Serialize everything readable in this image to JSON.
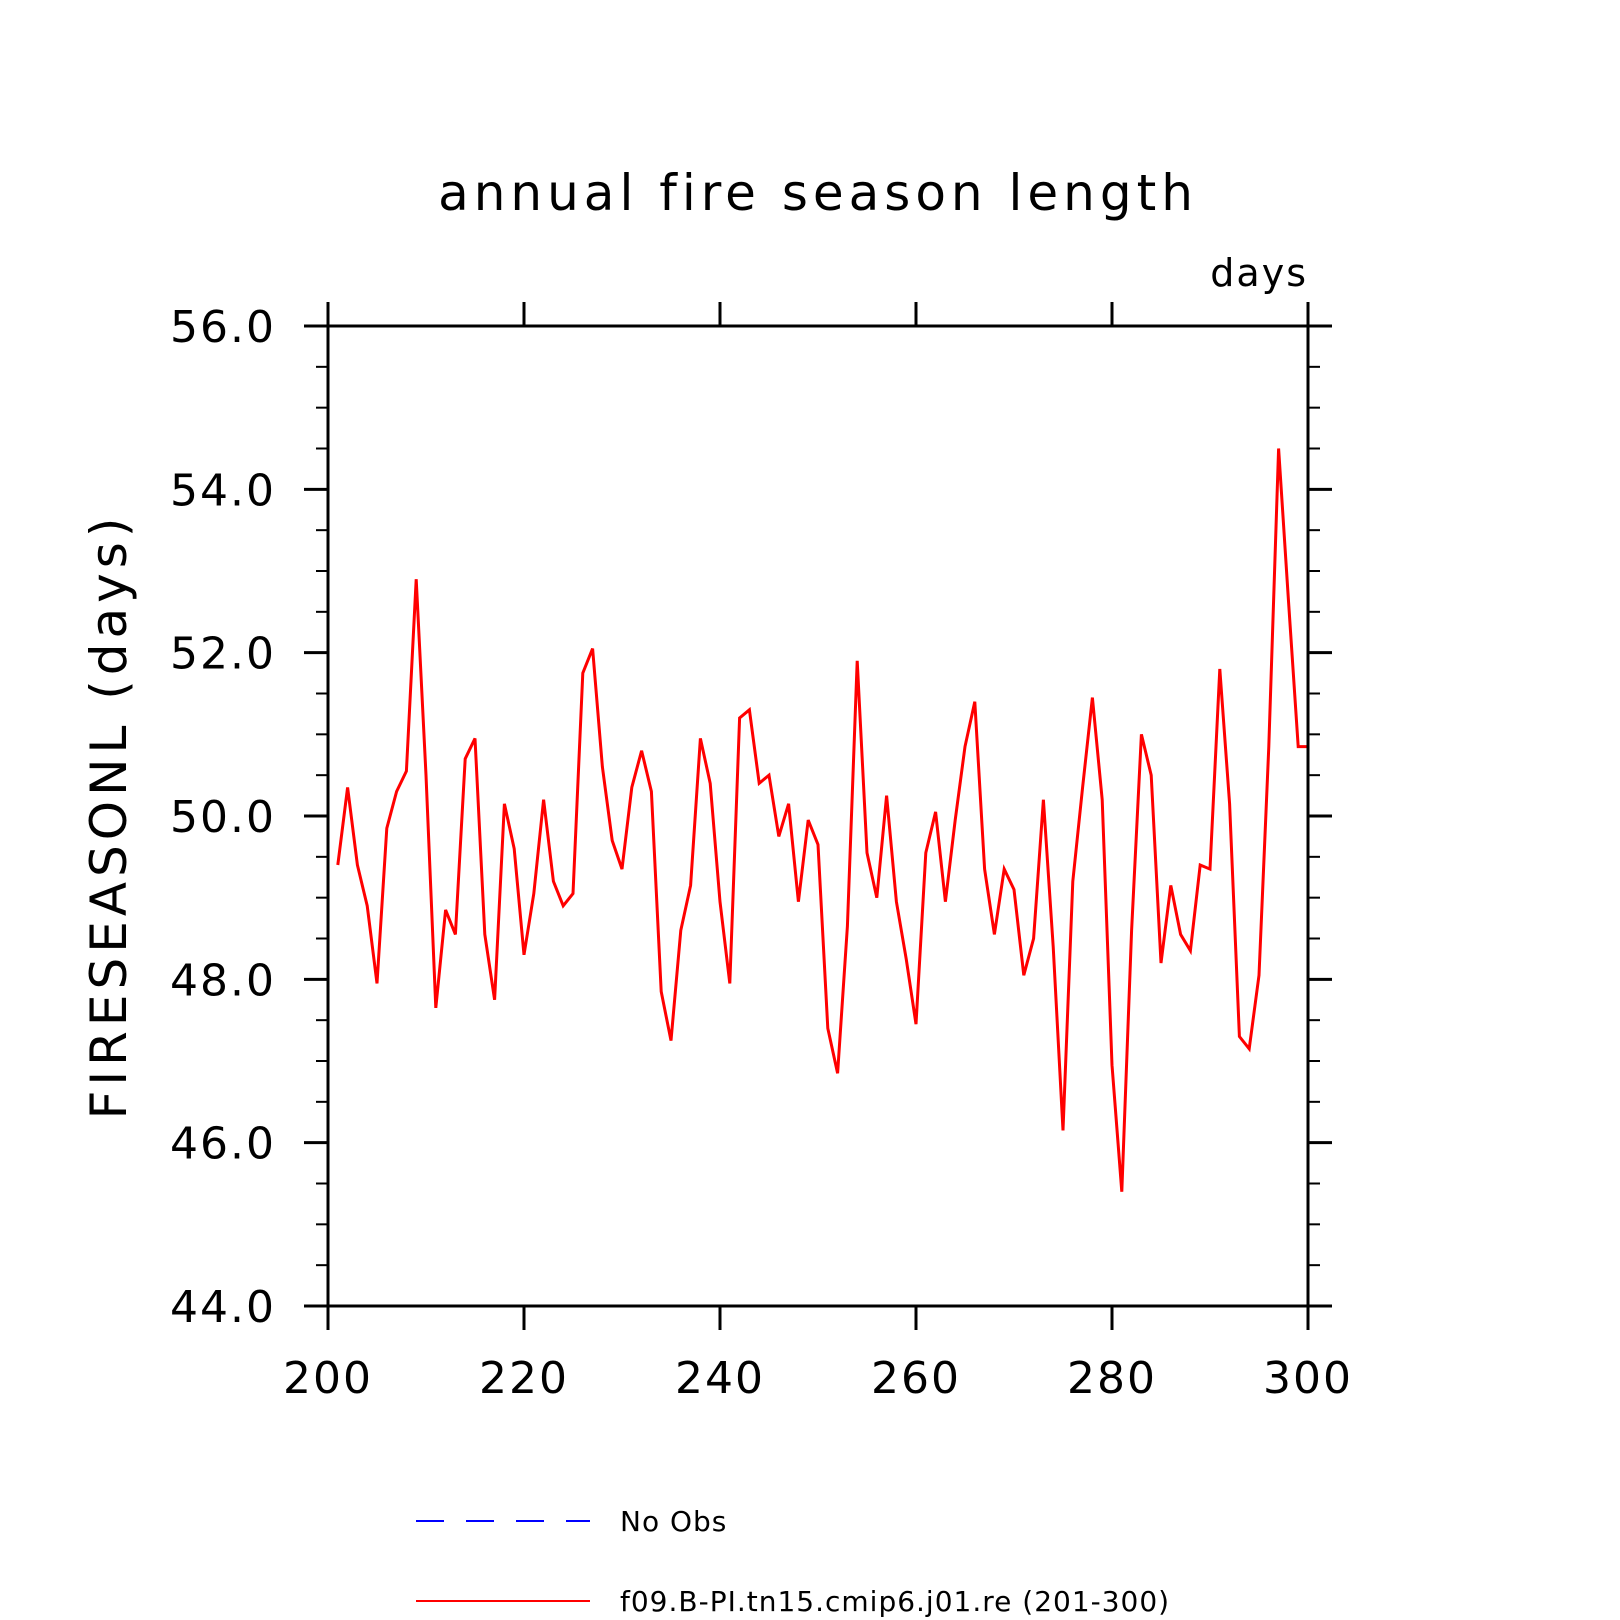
{
  "chart_data": {
    "type": "line",
    "title": "annual fire season length",
    "units": "days",
    "xlabel": "",
    "ylabel": "FIRESEASONL   (days)",
    "xlim": [
      200,
      300
    ],
    "ylim": [
      44,
      56
    ],
    "x_ticks": [
      "200",
      "220",
      "240",
      "260",
      "280",
      "300"
    ],
    "y_ticks": [
      "44.0",
      "46.0",
      "48.0",
      "50.0",
      "52.0",
      "54.0",
      "56.0"
    ],
    "legend_position": "bottom",
    "series": [
      {
        "name": "No Obs",
        "color": "#0000ff",
        "dash": "dashed",
        "x": [],
        "values": []
      },
      {
        "name": "f09.B-PI.tn15.cmip6.j01.re (201-300)",
        "color": "#ff0000",
        "dash": "solid",
        "x": [
          201,
          202,
          203,
          204,
          205,
          206,
          207,
          208,
          209,
          210,
          211,
          212,
          213,
          214,
          215,
          216,
          217,
          218,
          219,
          220,
          221,
          222,
          223,
          224,
          225,
          226,
          227,
          228,
          229,
          230,
          231,
          232,
          233,
          234,
          235,
          236,
          237,
          238,
          239,
          240,
          241,
          242,
          243,
          244,
          245,
          246,
          247,
          248,
          249,
          250,
          251,
          252,
          253,
          254,
          255,
          256,
          257,
          258,
          259,
          260,
          261,
          262,
          263,
          264,
          265,
          266,
          267,
          268,
          269,
          270,
          271,
          272,
          273,
          274,
          275,
          276,
          277,
          278,
          279,
          280,
          281,
          282,
          283,
          284,
          285,
          286,
          287,
          288,
          289,
          290,
          291,
          292,
          293,
          294,
          295,
          296,
          297,
          298,
          299,
          300
        ],
        "values": [
          49.4,
          50.35,
          49.4,
          48.9,
          47.95,
          49.85,
          50.3,
          50.55,
          52.9,
          50.5,
          47.65,
          48.85,
          48.55,
          50.7,
          50.95,
          48.55,
          47.75,
          50.15,
          49.6,
          48.3,
          49.05,
          50.2,
          49.2,
          48.9,
          49.05,
          51.75,
          52.05,
          50.6,
          49.7,
          49.35,
          50.35,
          50.8,
          50.3,
          47.85,
          47.25,
          48.6,
          49.15,
          50.95,
          50.4,
          48.95,
          47.95,
          51.2,
          51.3,
          50.4,
          50.5,
          49.75,
          50.15,
          48.95,
          49.95,
          49.65,
          47.4,
          46.85,
          48.65,
          51.9,
          49.55,
          49.0,
          50.25,
          48.95,
          48.25,
          47.45,
          49.55,
          50.05,
          48.95,
          49.95,
          50.85,
          51.4,
          49.35,
          48.55,
          49.35,
          49.1,
          48.05,
          48.5,
          50.2,
          48.4,
          46.15,
          49.2,
          50.35,
          51.45,
          50.2,
          46.95,
          45.4,
          48.6,
          51.0,
          50.5,
          48.2,
          49.15,
          48.55,
          48.35,
          49.4,
          49.35,
          51.8,
          50.15,
          47.3,
          47.15,
          48.05,
          50.85,
          54.5,
          52.65,
          50.85,
          50.85
        ]
      }
    ]
  }
}
